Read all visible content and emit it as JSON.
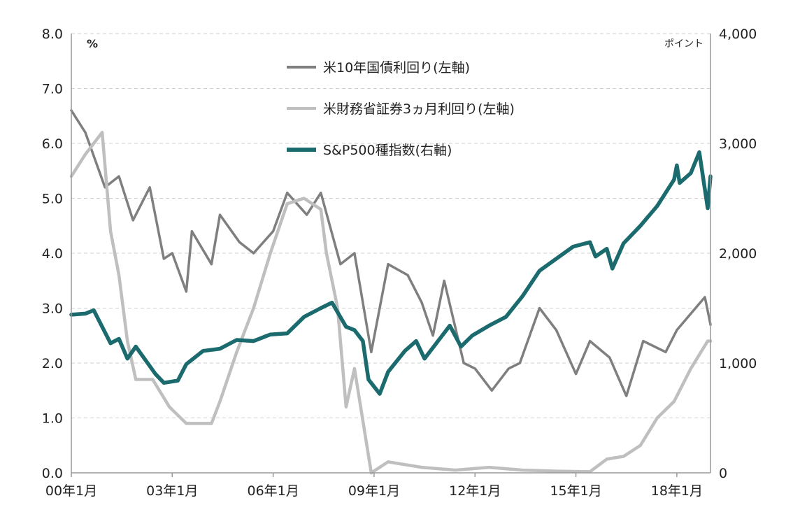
{
  "chart_data": {
    "type": "line",
    "left_unit": "%",
    "right_unit": "ポイント",
    "x_ticks": [
      "00年1月",
      "03年1月",
      "06年1月",
      "09年1月",
      "12年1月",
      "15年1月",
      "18年1月"
    ],
    "x_tick_dates": [
      "2000-01",
      "2003-01",
      "2006-01",
      "2009-01",
      "2012-01",
      "2015-01",
      "2018-01"
    ],
    "x_range": [
      "2000-01",
      "2019-01"
    ],
    "y_left": {
      "ylim": [
        0,
        8
      ],
      "ticks": [
        "0.0",
        "1.0",
        "2.0",
        "3.0",
        "4.0",
        "5.0",
        "6.0",
        "7.0",
        "8.0"
      ]
    },
    "y_right": {
      "ylim": [
        0,
        4000
      ],
      "ticks": [
        "0",
        "1,000",
        "2,000",
        "3,000",
        "4,000"
      ]
    },
    "grid": "horizontal dashed",
    "legend_position": "top-center",
    "series": [
      {
        "name": "米10年国債利回り(左軸)",
        "axis": "left",
        "color": "#7f7f7f",
        "x": [
          "2000-01",
          "2000-06",
          "2001-01",
          "2001-06",
          "2001-11",
          "2002-05",
          "2002-10",
          "2003-01",
          "2003-06",
          "2003-08",
          "2004-03",
          "2004-06",
          "2005-01",
          "2005-06",
          "2006-01",
          "2006-06",
          "2007-01",
          "2007-06",
          "2008-01",
          "2008-06",
          "2008-12",
          "2009-06",
          "2010-01",
          "2010-06",
          "2010-10",
          "2011-02",
          "2011-09",
          "2012-01",
          "2012-07",
          "2013-01",
          "2013-05",
          "2013-12",
          "2014-06",
          "2015-01",
          "2015-06",
          "2016-01",
          "2016-07",
          "2017-01",
          "2017-09",
          "2018-01",
          "2018-11",
          "2019-01"
        ],
        "values": [
          6.6,
          6.2,
          5.2,
          5.4,
          4.6,
          5.2,
          3.9,
          4.0,
          3.3,
          4.4,
          3.8,
          4.7,
          4.2,
          4.0,
          4.4,
          5.1,
          4.7,
          5.1,
          3.8,
          4.0,
          2.2,
          3.8,
          3.6,
          3.1,
          2.5,
          3.5,
          2.0,
          1.9,
          1.5,
          1.9,
          2.0,
          3.0,
          2.6,
          1.8,
          2.4,
          2.1,
          1.4,
          2.4,
          2.2,
          2.6,
          3.2,
          2.7
        ]
      },
      {
        "name": "米財務省証券3ヵ月利回り(左軸)",
        "axis": "left",
        "color": "#bfbfbf",
        "x": [
          "2000-01",
          "2000-06",
          "2000-12",
          "2001-03",
          "2001-06",
          "2001-09",
          "2001-12",
          "2002-06",
          "2002-12",
          "2003-06",
          "2004-03",
          "2004-06",
          "2004-12",
          "2005-06",
          "2005-12",
          "2006-06",
          "2006-12",
          "2007-06",
          "2007-08",
          "2007-12",
          "2008-03",
          "2008-06",
          "2008-12",
          "2009-06",
          "2010-06",
          "2011-06",
          "2012-06",
          "2013-06",
          "2014-06",
          "2015-06",
          "2015-12",
          "2016-06",
          "2016-12",
          "2017-06",
          "2017-12",
          "2018-06",
          "2018-12",
          "2019-01"
        ],
        "values": [
          5.4,
          5.8,
          6.2,
          4.4,
          3.6,
          2.4,
          1.7,
          1.7,
          1.2,
          0.9,
          0.9,
          1.3,
          2.2,
          3.0,
          4.0,
          4.9,
          5.0,
          4.8,
          4.0,
          3.0,
          1.2,
          1.9,
          0.0,
          0.2,
          0.1,
          0.05,
          0.1,
          0.05,
          0.03,
          0.02,
          0.25,
          0.3,
          0.5,
          1.0,
          1.3,
          1.9,
          2.4,
          2.4
        ]
      },
      {
        "name": "S&P500種指数(右軸)",
        "axis": "right",
        "color": "#1a6a6e",
        "x": [
          "2000-01",
          "2000-06",
          "2000-09",
          "2001-03",
          "2001-06",
          "2001-09",
          "2001-12",
          "2002-07",
          "2002-10",
          "2003-03",
          "2003-06",
          "2003-12",
          "2004-06",
          "2004-12",
          "2005-06",
          "2005-12",
          "2006-06",
          "2006-12",
          "2007-06",
          "2007-10",
          "2008-03",
          "2008-06",
          "2008-09",
          "2008-11",
          "2009-03",
          "2009-06",
          "2009-12",
          "2010-04",
          "2010-07",
          "2011-04",
          "2011-08",
          "2011-12",
          "2012-06",
          "2012-12",
          "2013-06",
          "2013-12",
          "2014-06",
          "2014-12",
          "2015-06",
          "2015-08",
          "2015-12",
          "2016-02",
          "2016-06",
          "2016-12",
          "2017-06",
          "2017-12",
          "2018-01",
          "2018-02",
          "2018-06",
          "2018-09",
          "2018-12",
          "2019-01"
        ],
        "values": [
          1440,
          1450,
          1480,
          1180,
          1220,
          1040,
          1150,
          900,
          820,
          840,
          990,
          1110,
          1130,
          1210,
          1200,
          1260,
          1270,
          1420,
          1500,
          1550,
          1330,
          1300,
          1200,
          850,
          720,
          920,
          1110,
          1200,
          1040,
          1340,
          1150,
          1250,
          1340,
          1420,
          1610,
          1840,
          1950,
          2060,
          2100,
          1970,
          2040,
          1860,
          2090,
          2250,
          2430,
          2670,
          2800,
          2640,
          2730,
          2920,
          2410,
          2700
        ]
      }
    ]
  }
}
